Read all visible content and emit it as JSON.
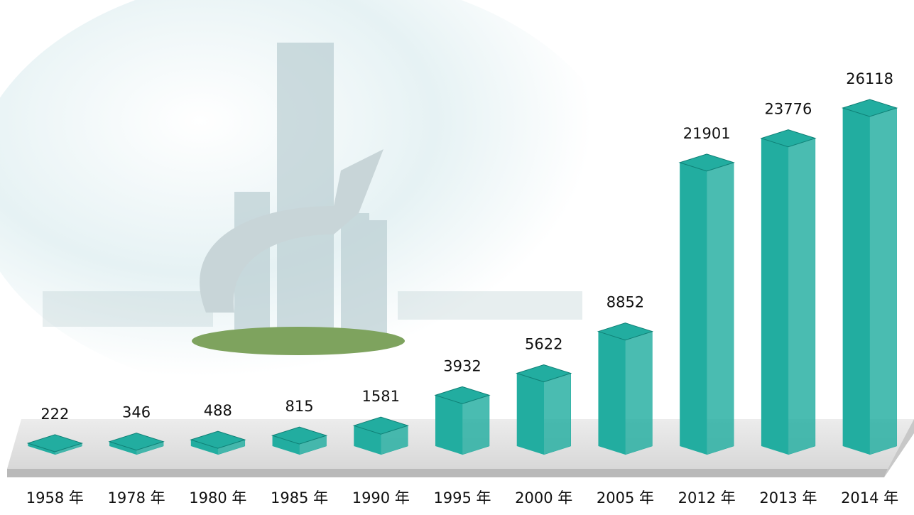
{
  "chart_data": {
    "type": "bar3d",
    "categories": [
      "1958 年",
      "1978 年",
      "1980 年",
      "1985 年",
      "1990 年",
      "1995 年",
      "2000 年",
      "2005 年",
      "2012 年",
      "2013 年",
      "2014 年"
    ],
    "values": [
      222,
      346,
      488,
      815,
      1581,
      3932,
      5622,
      8852,
      21901,
      23776,
      26118
    ],
    "color": "#22ada0"
  }
}
